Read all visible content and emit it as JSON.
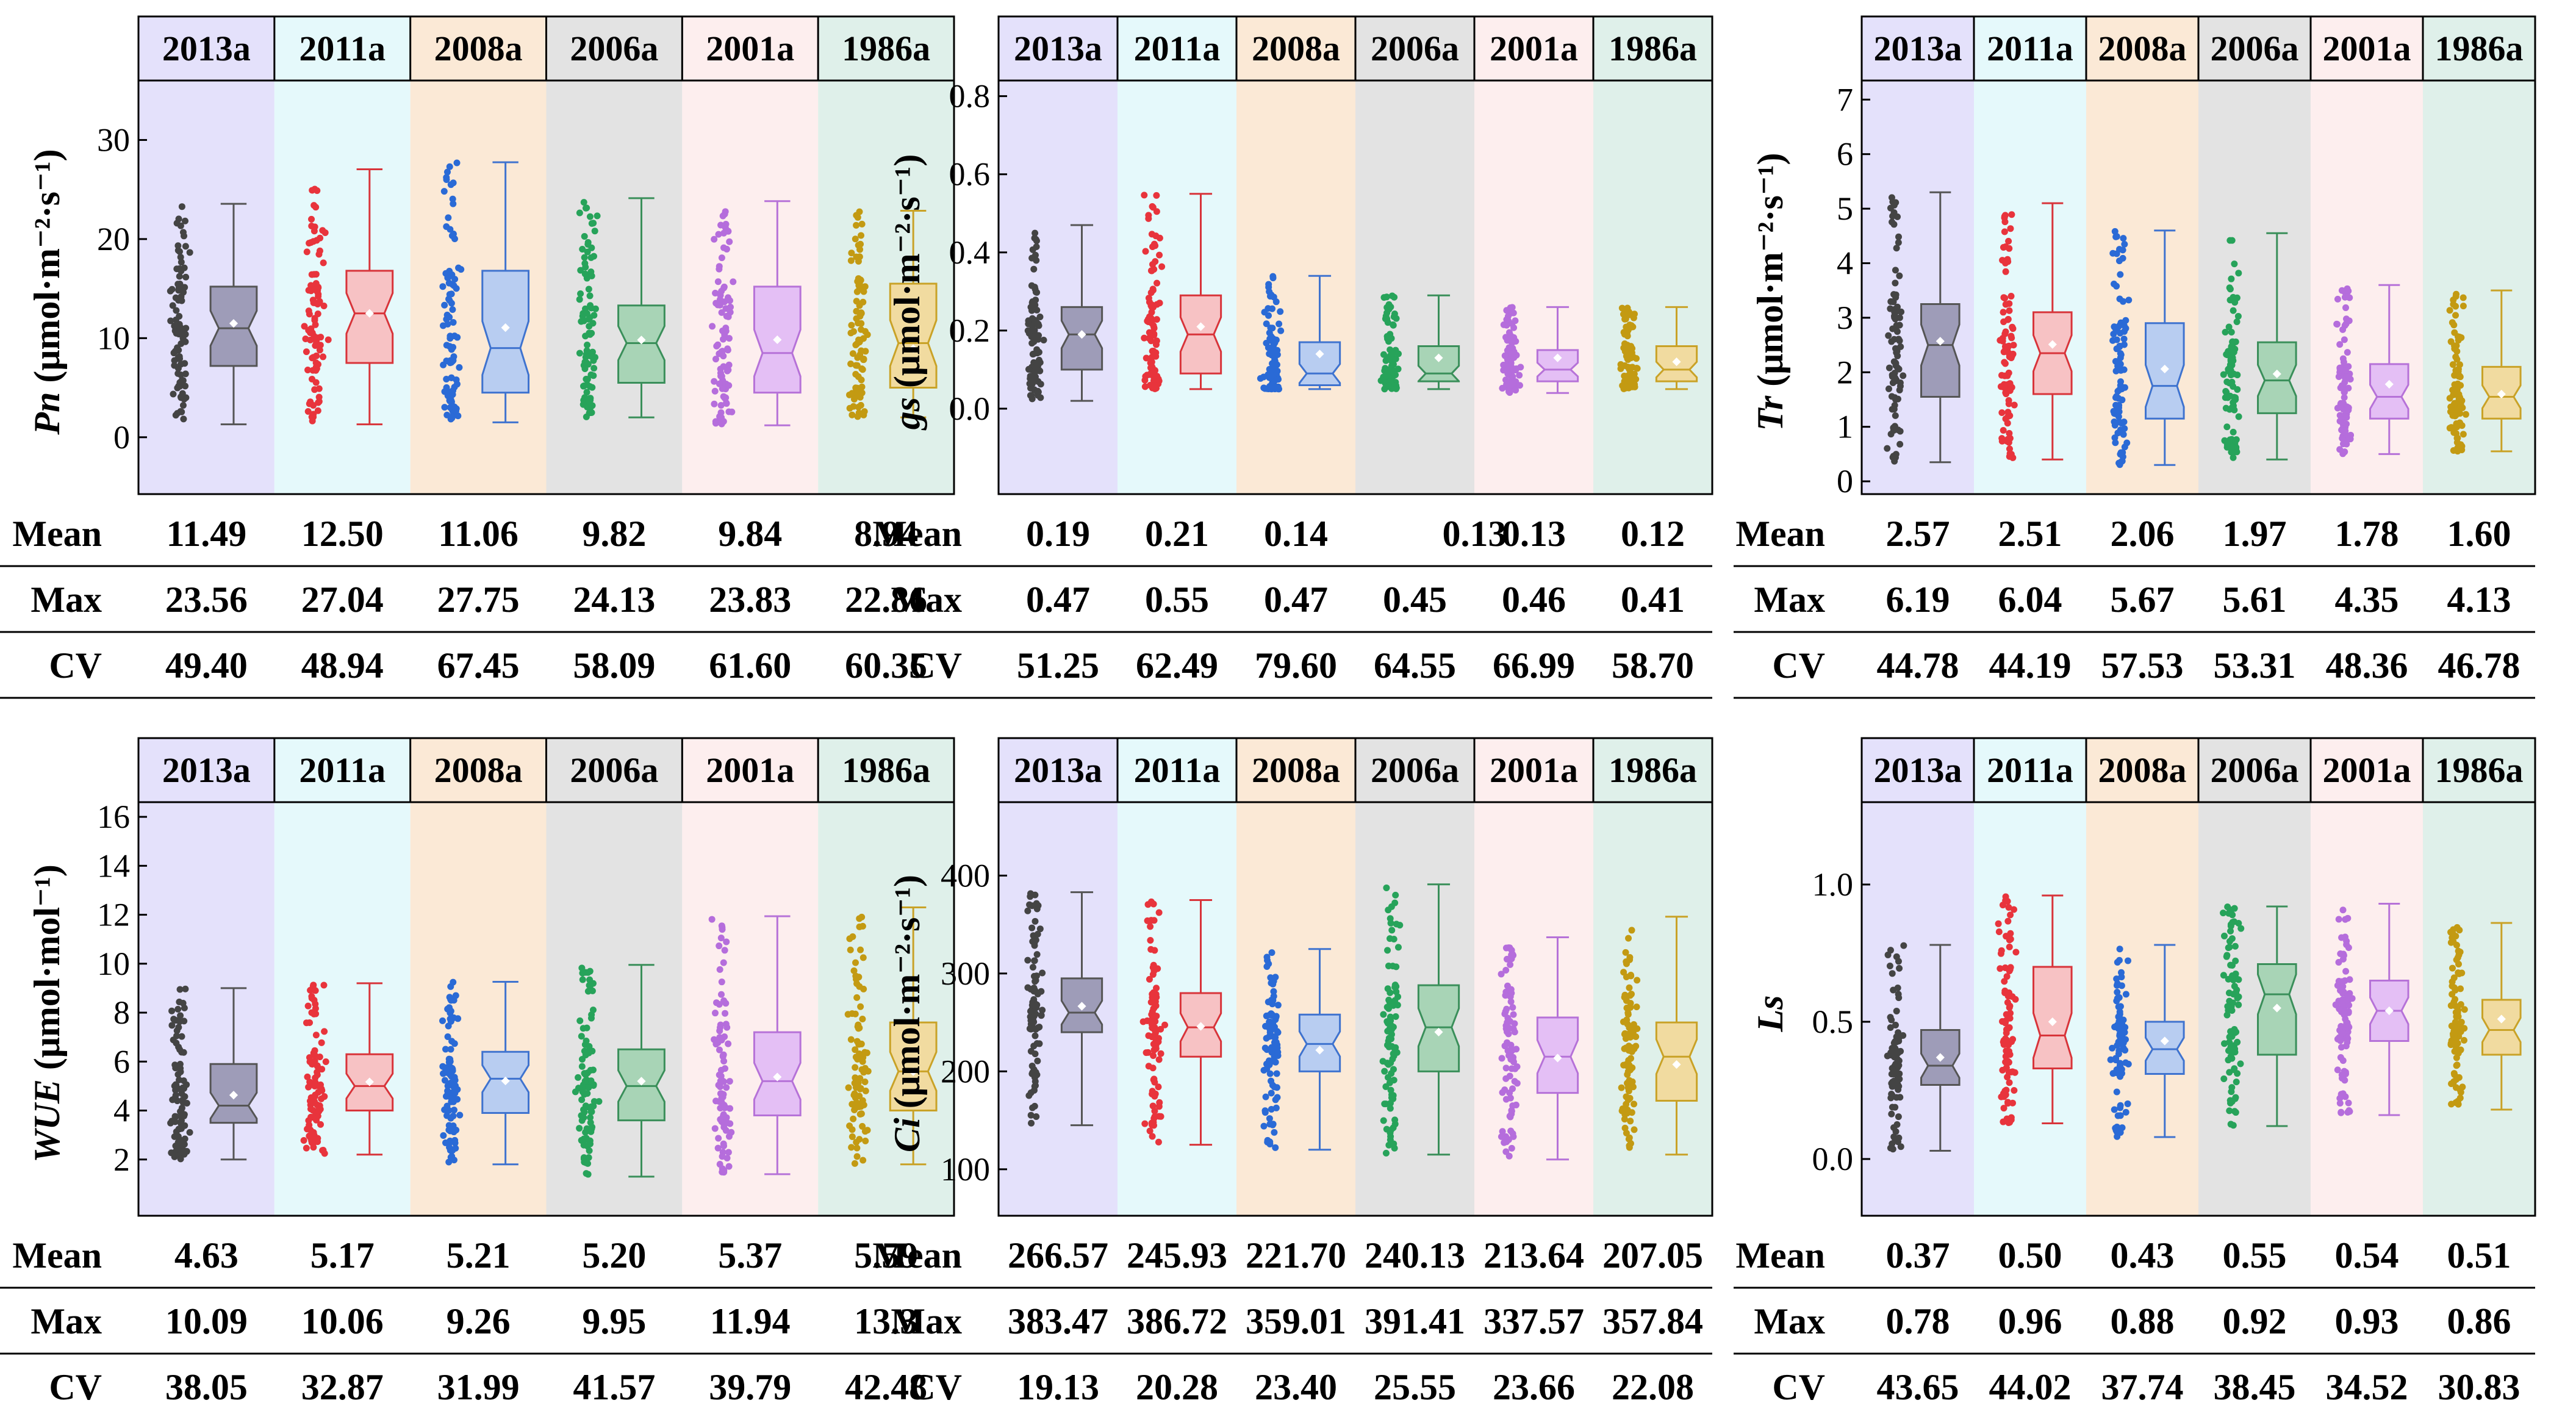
{
  "colors": {
    "bands": [
      "#e4e1fb",
      "#e5f9fb",
      "#fbe9d6",
      "#e3e3e3",
      "#fdeeee",
      "#dff0ea"
    ],
    "dots": [
      "#444444",
      "#e8343c",
      "#2a6ad6",
      "#27a35a",
      "#b56ddc",
      "#c39a12"
    ],
    "boxfill": [
      "#9e9cb8",
      "#f7c2c4",
      "#b8cdf1",
      "#a8d4b6",
      "#e4bff5",
      "#f1dba0"
    ],
    "boxline": [
      "#555555",
      "#d8343a",
      "#3f73cf",
      "#3a8f5a",
      "#b672d8",
      "#c9a227"
    ]
  },
  "chart_data": [
    {
      "type": "box",
      "ylabel_var": "Pn",
      "ylabel_unit": " (μmol·m⁻²·s⁻¹)",
      "categories": [
        "2013a",
        "2011a",
        "2008a",
        "2006a",
        "2001a",
        "1986a"
      ],
      "ylim": [
        -5,
        36
      ],
      "yticks": [
        "0",
        "10",
        "20",
        "30"
      ],
      "ytick_values": [
        0,
        10,
        20,
        30
      ],
      "boxes": [
        {
          "min": 1.3,
          "q1": 7.2,
          "median": 11.0,
          "q3": 15.2,
          "max": 23.56,
          "mean": 11.49
        },
        {
          "min": 1.3,
          "q1": 7.5,
          "median": 12.5,
          "q3": 16.8,
          "max": 27.04,
          "mean": 12.5
        },
        {
          "min": 1.5,
          "q1": 4.5,
          "median": 9.0,
          "q3": 16.8,
          "max": 27.75,
          "mean": 11.06
        },
        {
          "min": 2.0,
          "q1": 5.5,
          "median": 9.5,
          "q3": 13.3,
          "max": 24.13,
          "mean": 9.82
        },
        {
          "min": 1.2,
          "q1": 4.5,
          "median": 8.5,
          "q3": 15.2,
          "max": 23.83,
          "mean": 9.84
        },
        {
          "min": 2.0,
          "q1": 5.0,
          "median": 9.5,
          "q3": 15.5,
          "max": 22.86,
          "mean": 8.94
        }
      ],
      "stats": {
        "labels": [
          "Mean",
          "Max",
          "CV"
        ],
        "rows": [
          [
            "11.49",
            "12.50",
            "11.06",
            "9.82",
            "9.84",
            "8.94"
          ],
          [
            "23.56",
            "27.04",
            "27.75",
            "24.13",
            "23.83",
            "22.86"
          ],
          [
            "49.40",
            "48.94",
            "67.45",
            "58.09",
            "61.60",
            "60.35"
          ]
        ]
      }
    },
    {
      "type": "box",
      "ylabel_var": "gs",
      "ylabel_unit": " (μmol·m⁻²·s⁻¹)",
      "categories": [
        "2013a",
        "2011a",
        "2008a",
        "2006a",
        "2001a",
        "1986a"
      ],
      "ylim": [
        -0.2,
        0.84
      ],
      "yticks": [
        "0.0",
        "0.2",
        "0.4",
        "0.6",
        "0.8"
      ],
      "ytick_values": [
        0,
        0.2,
        0.4,
        0.6,
        0.8
      ],
      "boxes": [
        {
          "min": 0.02,
          "q1": 0.1,
          "median": 0.19,
          "q3": 0.26,
          "max": 0.47,
          "mean": 0.19
        },
        {
          "min": 0.05,
          "q1": 0.09,
          "median": 0.19,
          "q3": 0.29,
          "max": 0.55,
          "mean": 0.21
        },
        {
          "min": 0.05,
          "q1": 0.06,
          "median": 0.09,
          "q3": 0.17,
          "max": 0.34,
          "mean": 0.14
        },
        {
          "min": 0.05,
          "q1": 0.07,
          "median": 0.09,
          "q3": 0.16,
          "max": 0.29,
          "mean": 0.13
        },
        {
          "min": 0.04,
          "q1": 0.07,
          "median": 0.1,
          "q3": 0.15,
          "max": 0.26,
          "mean": 0.13
        },
        {
          "min": 0.05,
          "q1": 0.07,
          "median": 0.1,
          "q3": 0.16,
          "max": 0.26,
          "mean": 0.12
        }
      ],
      "stats": {
        "labels": [
          "Mean",
          "Max",
          "CV"
        ],
        "rows": [
          [
            "0.19",
            "0.21",
            "0.14",
            "",
            "0.13",
            "0.12"
          ],
          [
            "0.47",
            "0.55",
            "0.47",
            "0.45",
            "0.46",
            "0.41"
          ],
          [
            "51.25",
            "62.49",
            "79.60",
            "64.55",
            "66.99",
            "58.70"
          ]
        ]
      }
    },
    {
      "type": "box",
      "ylabel_var": "Tr",
      "ylabel_unit": " (μmol·m⁻²·s⁻¹)",
      "categories": [
        "2013a",
        "2011a",
        "2008a",
        "2006a",
        "2001a",
        "1986a"
      ],
      "ylim": [
        -0.1,
        7.35
      ],
      "yticks": [
        "0",
        "1",
        "2",
        "3",
        "4",
        "5",
        "6",
        "7"
      ],
      "ytick_values": [
        0,
        1,
        2,
        3,
        4,
        5,
        6,
        7
      ],
      "boxes": [
        {
          "min": 0.35,
          "q1": 1.55,
          "median": 2.5,
          "q3": 3.25,
          "max": 5.3,
          "mean": 2.57
        },
        {
          "min": 0.4,
          "q1": 1.6,
          "median": 2.35,
          "q3": 3.1,
          "max": 5.1,
          "mean": 2.51
        },
        {
          "min": 0.3,
          "q1": 1.15,
          "median": 1.75,
          "q3": 2.9,
          "max": 4.6,
          "mean": 2.06
        },
        {
          "min": 0.4,
          "q1": 1.25,
          "median": 1.85,
          "q3": 2.55,
          "max": 4.55,
          "mean": 1.97
        },
        {
          "min": 0.5,
          "q1": 1.15,
          "median": 1.55,
          "q3": 2.15,
          "max": 3.6,
          "mean": 1.78
        },
        {
          "min": 0.55,
          "q1": 1.15,
          "median": 1.55,
          "q3": 2.1,
          "max": 3.5,
          "mean": 1.6
        }
      ],
      "stats": {
        "labels": [
          "Mean",
          "Max",
          "CV"
        ],
        "rows": [
          [
            "2.57",
            "2.51",
            "2.06",
            "1.97",
            "1.78",
            "1.60"
          ],
          [
            "6.19",
            "6.04",
            "5.67",
            "5.61",
            "4.35",
            "4.13"
          ],
          [
            "44.78",
            "44.19",
            "57.53",
            "53.31",
            "48.36",
            "46.78"
          ]
        ]
      }
    },
    {
      "type": "box",
      "ylabel_var": "WUE",
      "ylabel_unit": " (μmol·mol⁻¹)",
      "categories": [
        "2013a",
        "2011a",
        "2008a",
        "2006a",
        "2001a",
        "1986a"
      ],
      "ylim": [
        0,
        16.6
      ],
      "yticks": [
        "2",
        "4",
        "6",
        "8",
        "10",
        "12",
        "14",
        "16"
      ],
      "ytick_values": [
        2,
        4,
        6,
        8,
        10,
        12,
        14,
        16
      ],
      "boxes": [
        {
          "min": 2.0,
          "q1": 3.5,
          "median": 4.2,
          "q3": 5.9,
          "max": 9.0,
          "mean": 4.63
        },
        {
          "min": 2.2,
          "q1": 4.0,
          "median": 5.0,
          "q3": 6.3,
          "max": 9.2,
          "mean": 5.17
        },
        {
          "min": 1.8,
          "q1": 3.9,
          "median": 5.3,
          "q3": 6.4,
          "max": 9.26,
          "mean": 5.21
        },
        {
          "min": 1.3,
          "q1": 3.6,
          "median": 5.0,
          "q3": 6.5,
          "max": 9.95,
          "mean": 5.2
        },
        {
          "min": 1.4,
          "q1": 3.8,
          "median": 5.2,
          "q3": 7.2,
          "max": 11.94,
          "mean": 5.37
        },
        {
          "min": 1.8,
          "q1": 4.0,
          "median": 5.6,
          "q3": 7.6,
          "max": 12.3,
          "mean": 5.59
        }
      ],
      "stats": {
        "labels": [
          "Mean",
          "Max",
          "CV"
        ],
        "rows": [
          [
            "4.63",
            "5.17",
            "5.21",
            "5.20",
            "5.37",
            "5.59"
          ],
          [
            "10.09",
            "10.06",
            "9.26",
            "9.95",
            "11.94",
            "13.3"
          ],
          [
            "38.05",
            "32.87",
            "31.99",
            "41.57",
            "39.79",
            "42.48"
          ]
        ]
      }
    },
    {
      "type": "box",
      "ylabel_var": "Ci",
      "ylabel_unit": " (μmol·m⁻²·s⁻¹)",
      "categories": [
        "2013a",
        "2011a",
        "2008a",
        "2006a",
        "2001a",
        "1986a"
      ],
      "ylim": [
        60,
        475
      ],
      "yticks": [
        "100",
        "200",
        "300",
        "400"
      ],
      "ytick_values": [
        100,
        200,
        300,
        400
      ],
      "boxes": [
        {
          "min": 145,
          "q1": 240,
          "median": 260,
          "q3": 295,
          "max": 383,
          "mean": 266.57
        },
        {
          "min": 125,
          "q1": 215,
          "median": 245,
          "q3": 280,
          "max": 375,
          "mean": 245.93
        },
        {
          "min": 120,
          "q1": 200,
          "median": 228,
          "q3": 258,
          "max": 325,
          "mean": 221.7
        },
        {
          "min": 115,
          "q1": 200,
          "median": 245,
          "q3": 288,
          "max": 391,
          "mean": 240.13
        },
        {
          "min": 110,
          "q1": 178,
          "median": 215,
          "q3": 255,
          "max": 337,
          "mean": 213.64
        },
        {
          "min": 115,
          "q1": 170,
          "median": 215,
          "q3": 250,
          "max": 358,
          "mean": 207.05
        }
      ],
      "stats": {
        "labels": [
          "Mean",
          "Max",
          "CV"
        ],
        "rows": [
          [
            "266.57",
            "245.93",
            "221.70",
            "240.13",
            "213.64",
            "207.05"
          ],
          [
            "383.47",
            "386.72",
            "359.01",
            "391.41",
            "337.57",
            "357.84"
          ],
          [
            "19.13",
            "20.28",
            "23.40",
            "25.55",
            "23.66",
            "22.08"
          ]
        ]
      }
    },
    {
      "type": "box",
      "ylabel_var": "Ls",
      "ylabel_unit": "",
      "categories": [
        "2013a",
        "2011a",
        "2008a",
        "2006a",
        "2001a",
        "1986a"
      ],
      "ylim": [
        -0.18,
        1.3
      ],
      "yticks": [
        "0.0",
        "0.5",
        "1.0"
      ],
      "ytick_values": [
        0,
        0.5,
        1.0
      ],
      "boxes": [
        {
          "min": 0.03,
          "q1": 0.27,
          "median": 0.34,
          "q3": 0.47,
          "max": 0.78,
          "mean": 0.37
        },
        {
          "min": 0.13,
          "q1": 0.33,
          "median": 0.45,
          "q3": 0.7,
          "max": 0.96,
          "mean": 0.5
        },
        {
          "min": 0.08,
          "q1": 0.31,
          "median": 0.4,
          "q3": 0.5,
          "max": 0.78,
          "mean": 0.43
        },
        {
          "min": 0.12,
          "q1": 0.38,
          "median": 0.6,
          "q3": 0.71,
          "max": 0.92,
          "mean": 0.55
        },
        {
          "min": 0.16,
          "q1": 0.43,
          "median": 0.54,
          "q3": 0.65,
          "max": 0.93,
          "mean": 0.54
        },
        {
          "min": 0.18,
          "q1": 0.38,
          "median": 0.47,
          "q3": 0.58,
          "max": 0.86,
          "mean": 0.51
        }
      ],
      "stats": {
        "labels": [
          "Mean",
          "Max",
          "CV"
        ],
        "rows": [
          [
            "0.37",
            "0.50",
            "0.43",
            "0.55",
            "0.54",
            "0.51"
          ],
          [
            "0.78",
            "0.96",
            "0.88",
            "0.92",
            "0.93",
            "0.86"
          ],
          [
            "43.65",
            "44.02",
            "37.74",
            "38.45",
            "34.52",
            "30.83"
          ]
        ]
      }
    }
  ]
}
